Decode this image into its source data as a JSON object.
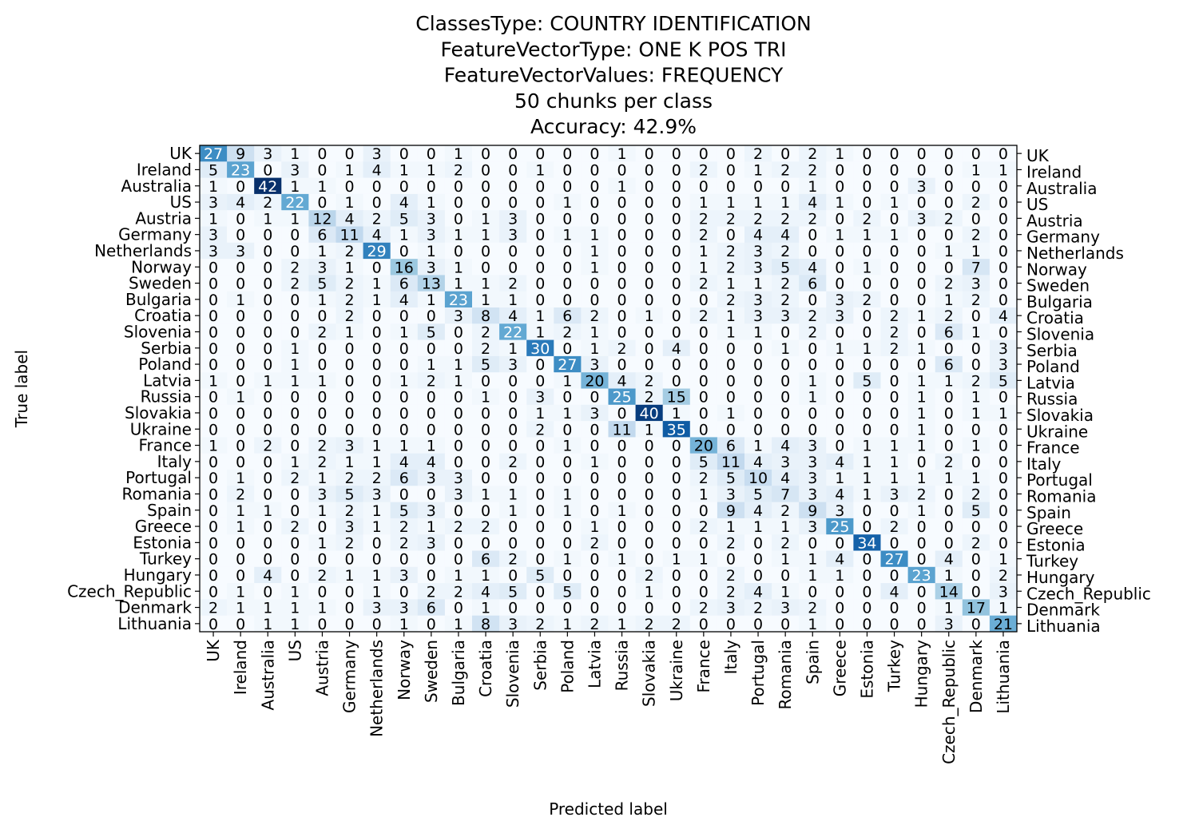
{
  "chart_data": {
    "type": "heatmap",
    "title": [
      "ClassesType: COUNTRY IDENTIFICATION",
      "FeatureVectorType: ONE K POS TRI",
      "FeatureVectorValues: FREQUENCY",
      "50 chunks per class",
      "Accuracy: 42.9%"
    ],
    "xlabel": "Predicted label",
    "ylabel": "True label",
    "colormap": "Blues",
    "color_low": "#f7fbff",
    "color_high": "#08306b",
    "value_range": [
      0,
      42
    ],
    "labels": [
      "UK",
      "Ireland",
      "Australia",
      "US",
      "Austria",
      "Germany",
      "Netherlands",
      "Norway",
      "Sweden",
      "Bulgaria",
      "Croatia",
      "Slovenia",
      "Serbia",
      "Poland",
      "Latvia",
      "Russia",
      "Slovakia",
      "Ukraine",
      "France",
      "Italy",
      "Portugal",
      "Romania",
      "Spain",
      "Greece",
      "Estonia",
      "Turkey",
      "Hungary",
      "Czech_Republic",
      "Denmark",
      "Lithuania"
    ],
    "matrix": [
      [
        27,
        9,
        3,
        1,
        0,
        0,
        3,
        0,
        0,
        1,
        0,
        0,
        0,
        0,
        0,
        1,
        0,
        0,
        0,
        0,
        2,
        0,
        2,
        1,
        0,
        0,
        0,
        0,
        0,
        0
      ],
      [
        5,
        23,
        0,
        3,
        0,
        1,
        4,
        1,
        1,
        2,
        0,
        0,
        1,
        0,
        0,
        0,
        0,
        0,
        2,
        0,
        1,
        2,
        2,
        0,
        0,
        0,
        0,
        0,
        1,
        1
      ],
      [
        1,
        0,
        42,
        1,
        1,
        0,
        0,
        0,
        0,
        0,
        0,
        0,
        0,
        0,
        0,
        1,
        0,
        0,
        0,
        0,
        0,
        0,
        1,
        0,
        0,
        0,
        3,
        0,
        0,
        0
      ],
      [
        3,
        4,
        2,
        22,
        0,
        1,
        0,
        4,
        1,
        0,
        0,
        0,
        0,
        1,
        0,
        0,
        0,
        0,
        1,
        1,
        1,
        1,
        4,
        1,
        0,
        1,
        0,
        0,
        2,
        0
      ],
      [
        1,
        0,
        1,
        1,
        12,
        4,
        2,
        5,
        3,
        0,
        1,
        3,
        0,
        0,
        0,
        0,
        0,
        0,
        2,
        2,
        2,
        2,
        2,
        0,
        2,
        0,
        3,
        2,
        0,
        0
      ],
      [
        3,
        0,
        0,
        0,
        6,
        11,
        4,
        1,
        3,
        1,
        1,
        3,
        0,
        1,
        1,
        0,
        0,
        0,
        2,
        0,
        4,
        4,
        0,
        1,
        1,
        1,
        0,
        0,
        2,
        0
      ],
      [
        3,
        3,
        0,
        0,
        1,
        2,
        29,
        0,
        1,
        0,
        0,
        0,
        0,
        0,
        1,
        0,
        0,
        0,
        1,
        2,
        3,
        2,
        0,
        0,
        0,
        0,
        0,
        1,
        1,
        0
      ],
      [
        0,
        0,
        0,
        2,
        3,
        1,
        0,
        16,
        3,
        1,
        0,
        0,
        0,
        0,
        1,
        0,
        0,
        0,
        1,
        2,
        3,
        5,
        4,
        0,
        1,
        0,
        0,
        0,
        7,
        0
      ],
      [
        0,
        0,
        0,
        2,
        5,
        2,
        1,
        6,
        13,
        1,
        1,
        2,
        0,
        0,
        0,
        0,
        0,
        0,
        2,
        1,
        1,
        2,
        6,
        0,
        0,
        0,
        0,
        2,
        3,
        0
      ],
      [
        0,
        1,
        0,
        0,
        1,
        2,
        1,
        4,
        1,
        23,
        1,
        1,
        0,
        0,
        0,
        0,
        0,
        0,
        0,
        2,
        3,
        2,
        0,
        3,
        2,
        0,
        0,
        1,
        2,
        0
      ],
      [
        0,
        0,
        0,
        0,
        0,
        2,
        0,
        0,
        0,
        3,
        8,
        4,
        1,
        6,
        2,
        0,
        1,
        0,
        2,
        1,
        3,
        3,
        2,
        3,
        0,
        2,
        1,
        2,
        0,
        4
      ],
      [
        0,
        0,
        0,
        0,
        2,
        1,
        0,
        1,
        5,
        0,
        2,
        22,
        1,
        2,
        1,
        0,
        0,
        0,
        0,
        1,
        1,
        0,
        2,
        0,
        0,
        2,
        0,
        6,
        1,
        0
      ],
      [
        0,
        0,
        0,
        1,
        0,
        0,
        0,
        0,
        0,
        0,
        2,
        1,
        30,
        0,
        1,
        2,
        0,
        4,
        0,
        0,
        0,
        1,
        0,
        1,
        1,
        2,
        1,
        0,
        0,
        3
      ],
      [
        0,
        0,
        0,
        1,
        0,
        0,
        0,
        0,
        1,
        1,
        5,
        3,
        0,
        27,
        3,
        0,
        0,
        0,
        0,
        0,
        0,
        0,
        0,
        0,
        0,
        0,
        0,
        6,
        0,
        3
      ],
      [
        1,
        0,
        1,
        1,
        1,
        0,
        0,
        1,
        2,
        1,
        0,
        0,
        0,
        1,
        20,
        4,
        2,
        0,
        0,
        0,
        0,
        0,
        1,
        0,
        5,
        0,
        1,
        1,
        2,
        5
      ],
      [
        0,
        1,
        0,
        0,
        0,
        0,
        0,
        0,
        0,
        0,
        1,
        0,
        3,
        0,
        0,
        25,
        2,
        15,
        0,
        0,
        0,
        0,
        1,
        0,
        0,
        0,
        1,
        0,
        1,
        0
      ],
      [
        0,
        0,
        0,
        0,
        0,
        0,
        0,
        0,
        0,
        0,
        0,
        0,
        1,
        1,
        3,
        0,
        40,
        1,
        0,
        1,
        0,
        0,
        0,
        0,
        0,
        0,
        1,
        0,
        1,
        1
      ],
      [
        0,
        0,
        0,
        0,
        0,
        0,
        0,
        0,
        0,
        0,
        0,
        0,
        2,
        0,
        0,
        11,
        1,
        35,
        0,
        0,
        0,
        0,
        0,
        0,
        0,
        0,
        1,
        0,
        0,
        0
      ],
      [
        1,
        0,
        2,
        0,
        2,
        3,
        1,
        1,
        1,
        0,
        0,
        0,
        0,
        1,
        0,
        0,
        0,
        0,
        20,
        6,
        1,
        4,
        3,
        0,
        1,
        1,
        1,
        0,
        1,
        0
      ],
      [
        0,
        0,
        0,
        1,
        2,
        1,
        1,
        4,
        4,
        0,
        0,
        2,
        0,
        0,
        1,
        0,
        0,
        0,
        5,
        11,
        4,
        3,
        3,
        4,
        1,
        1,
        0,
        2,
        0,
        0
      ],
      [
        0,
        1,
        0,
        2,
        1,
        2,
        2,
        6,
        3,
        3,
        0,
        0,
        0,
        0,
        0,
        0,
        0,
        0,
        2,
        5,
        10,
        4,
        3,
        1,
        1,
        1,
        1,
        1,
        1,
        0
      ],
      [
        0,
        2,
        0,
        0,
        3,
        5,
        3,
        0,
        0,
        3,
        1,
        1,
        0,
        1,
        0,
        0,
        0,
        0,
        1,
        3,
        5,
        7,
        3,
        4,
        1,
        3,
        2,
        0,
        2,
        0
      ],
      [
        0,
        1,
        1,
        0,
        1,
        2,
        1,
        5,
        3,
        0,
        0,
        1,
        0,
        1,
        0,
        1,
        0,
        0,
        0,
        9,
        4,
        2,
        9,
        3,
        0,
        0,
        1,
        0,
        5,
        0
      ],
      [
        0,
        1,
        0,
        2,
        0,
        3,
        1,
        2,
        1,
        2,
        2,
        0,
        0,
        0,
        1,
        0,
        0,
        0,
        2,
        1,
        1,
        1,
        3,
        25,
        0,
        2,
        0,
        0,
        0,
        0
      ],
      [
        0,
        0,
        0,
        0,
        1,
        2,
        0,
        2,
        3,
        0,
        0,
        0,
        0,
        0,
        2,
        0,
        0,
        0,
        0,
        2,
        0,
        2,
        0,
        0,
        34,
        0,
        0,
        0,
        2,
        0
      ],
      [
        0,
        0,
        0,
        0,
        0,
        0,
        0,
        0,
        0,
        0,
        6,
        2,
        0,
        1,
        0,
        1,
        0,
        1,
        1,
        0,
        0,
        1,
        1,
        4,
        0,
        27,
        0,
        4,
        0,
        1
      ],
      [
        0,
        0,
        4,
        0,
        2,
        1,
        1,
        3,
        0,
        1,
        1,
        0,
        5,
        0,
        0,
        0,
        2,
        0,
        0,
        2,
        0,
        0,
        1,
        1,
        0,
        0,
        23,
        1,
        0,
        2
      ],
      [
        0,
        1,
        0,
        1,
        0,
        0,
        1,
        0,
        2,
        2,
        4,
        5,
        0,
        5,
        0,
        0,
        1,
        0,
        0,
        2,
        4,
        1,
        0,
        0,
        0,
        4,
        0,
        14,
        0,
        3
      ],
      [
        2,
        1,
        1,
        1,
        1,
        0,
        3,
        3,
        6,
        0,
        1,
        0,
        0,
        0,
        0,
        0,
        0,
        0,
        2,
        3,
        2,
        3,
        2,
        0,
        0,
        0,
        0,
        1,
        17,
        1
      ],
      [
        0,
        0,
        1,
        1,
        0,
        0,
        0,
        1,
        0,
        1,
        8,
        3,
        2,
        1,
        2,
        1,
        2,
        2,
        0,
        0,
        0,
        0,
        1,
        0,
        0,
        0,
        0,
        3,
        0,
        21
      ]
    ]
  }
}
